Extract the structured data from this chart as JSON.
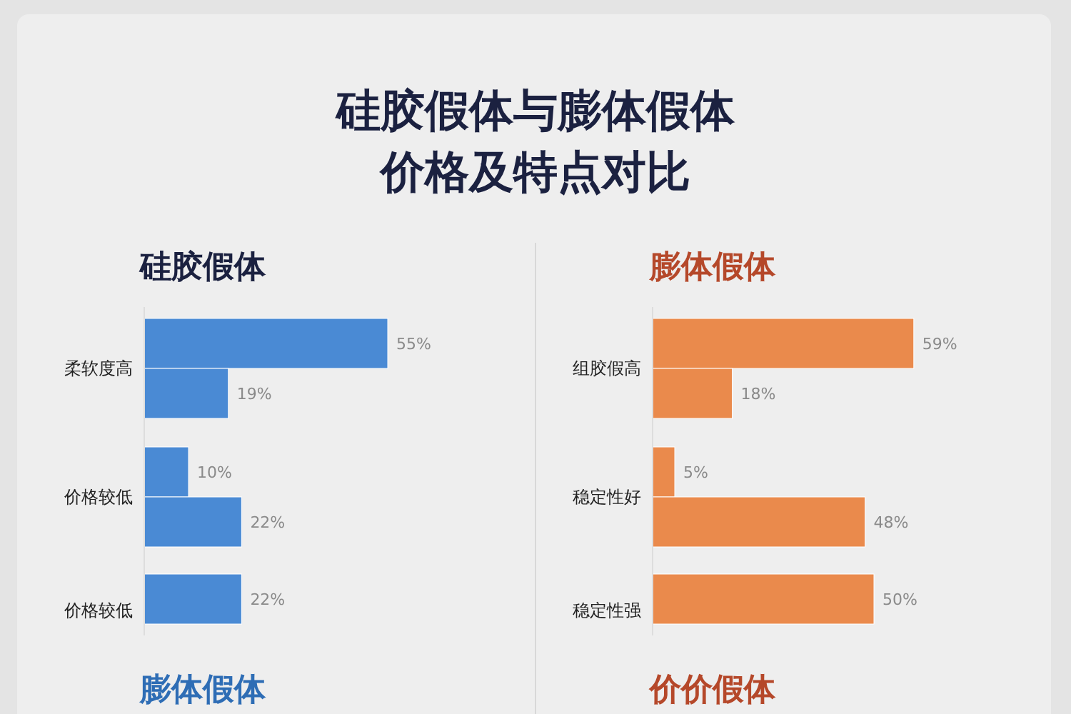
{
  "chart_data": [
    {
      "type": "bar",
      "orientation": "horizontal",
      "title": "硅胶假体与膨体假体价格及特点对比",
      "subtitle": "硅胶假体",
      "categories": [
        "柔软度高",
        "价格较低",
        "价格较低"
      ],
      "series": [
        {
          "color": "#4a8ad4",
          "values": [
            55,
            10,
            22
          ],
          "value_labels": [
            "55%",
            "10%",
            "22%"
          ]
        },
        {
          "color": "#4a8ad4",
          "values": [
            19,
            22,
            null
          ],
          "value_labels": [
            "19%",
            "22%",
            null
          ]
        }
      ],
      "annotations": [
        "膨体假体"
      ]
    },
    {
      "type": "bar",
      "orientation": "horizontal",
      "subtitle": "膨体假体",
      "categories": [
        "组胶假高",
        "稳定性好",
        "稳定性强"
      ],
      "series": [
        {
          "color": "#ea8a4c",
          "values": [
            59,
            5,
            50
          ],
          "value_labels": [
            "59%",
            "5%",
            "50%"
          ]
        },
        {
          "color": "#ea8a4c",
          "values": [
            18,
            48,
            null
          ],
          "value_labels": [
            "18%",
            "48%",
            null
          ]
        }
      ],
      "annotations": [
        "价价假体"
      ]
    }
  ]
}
